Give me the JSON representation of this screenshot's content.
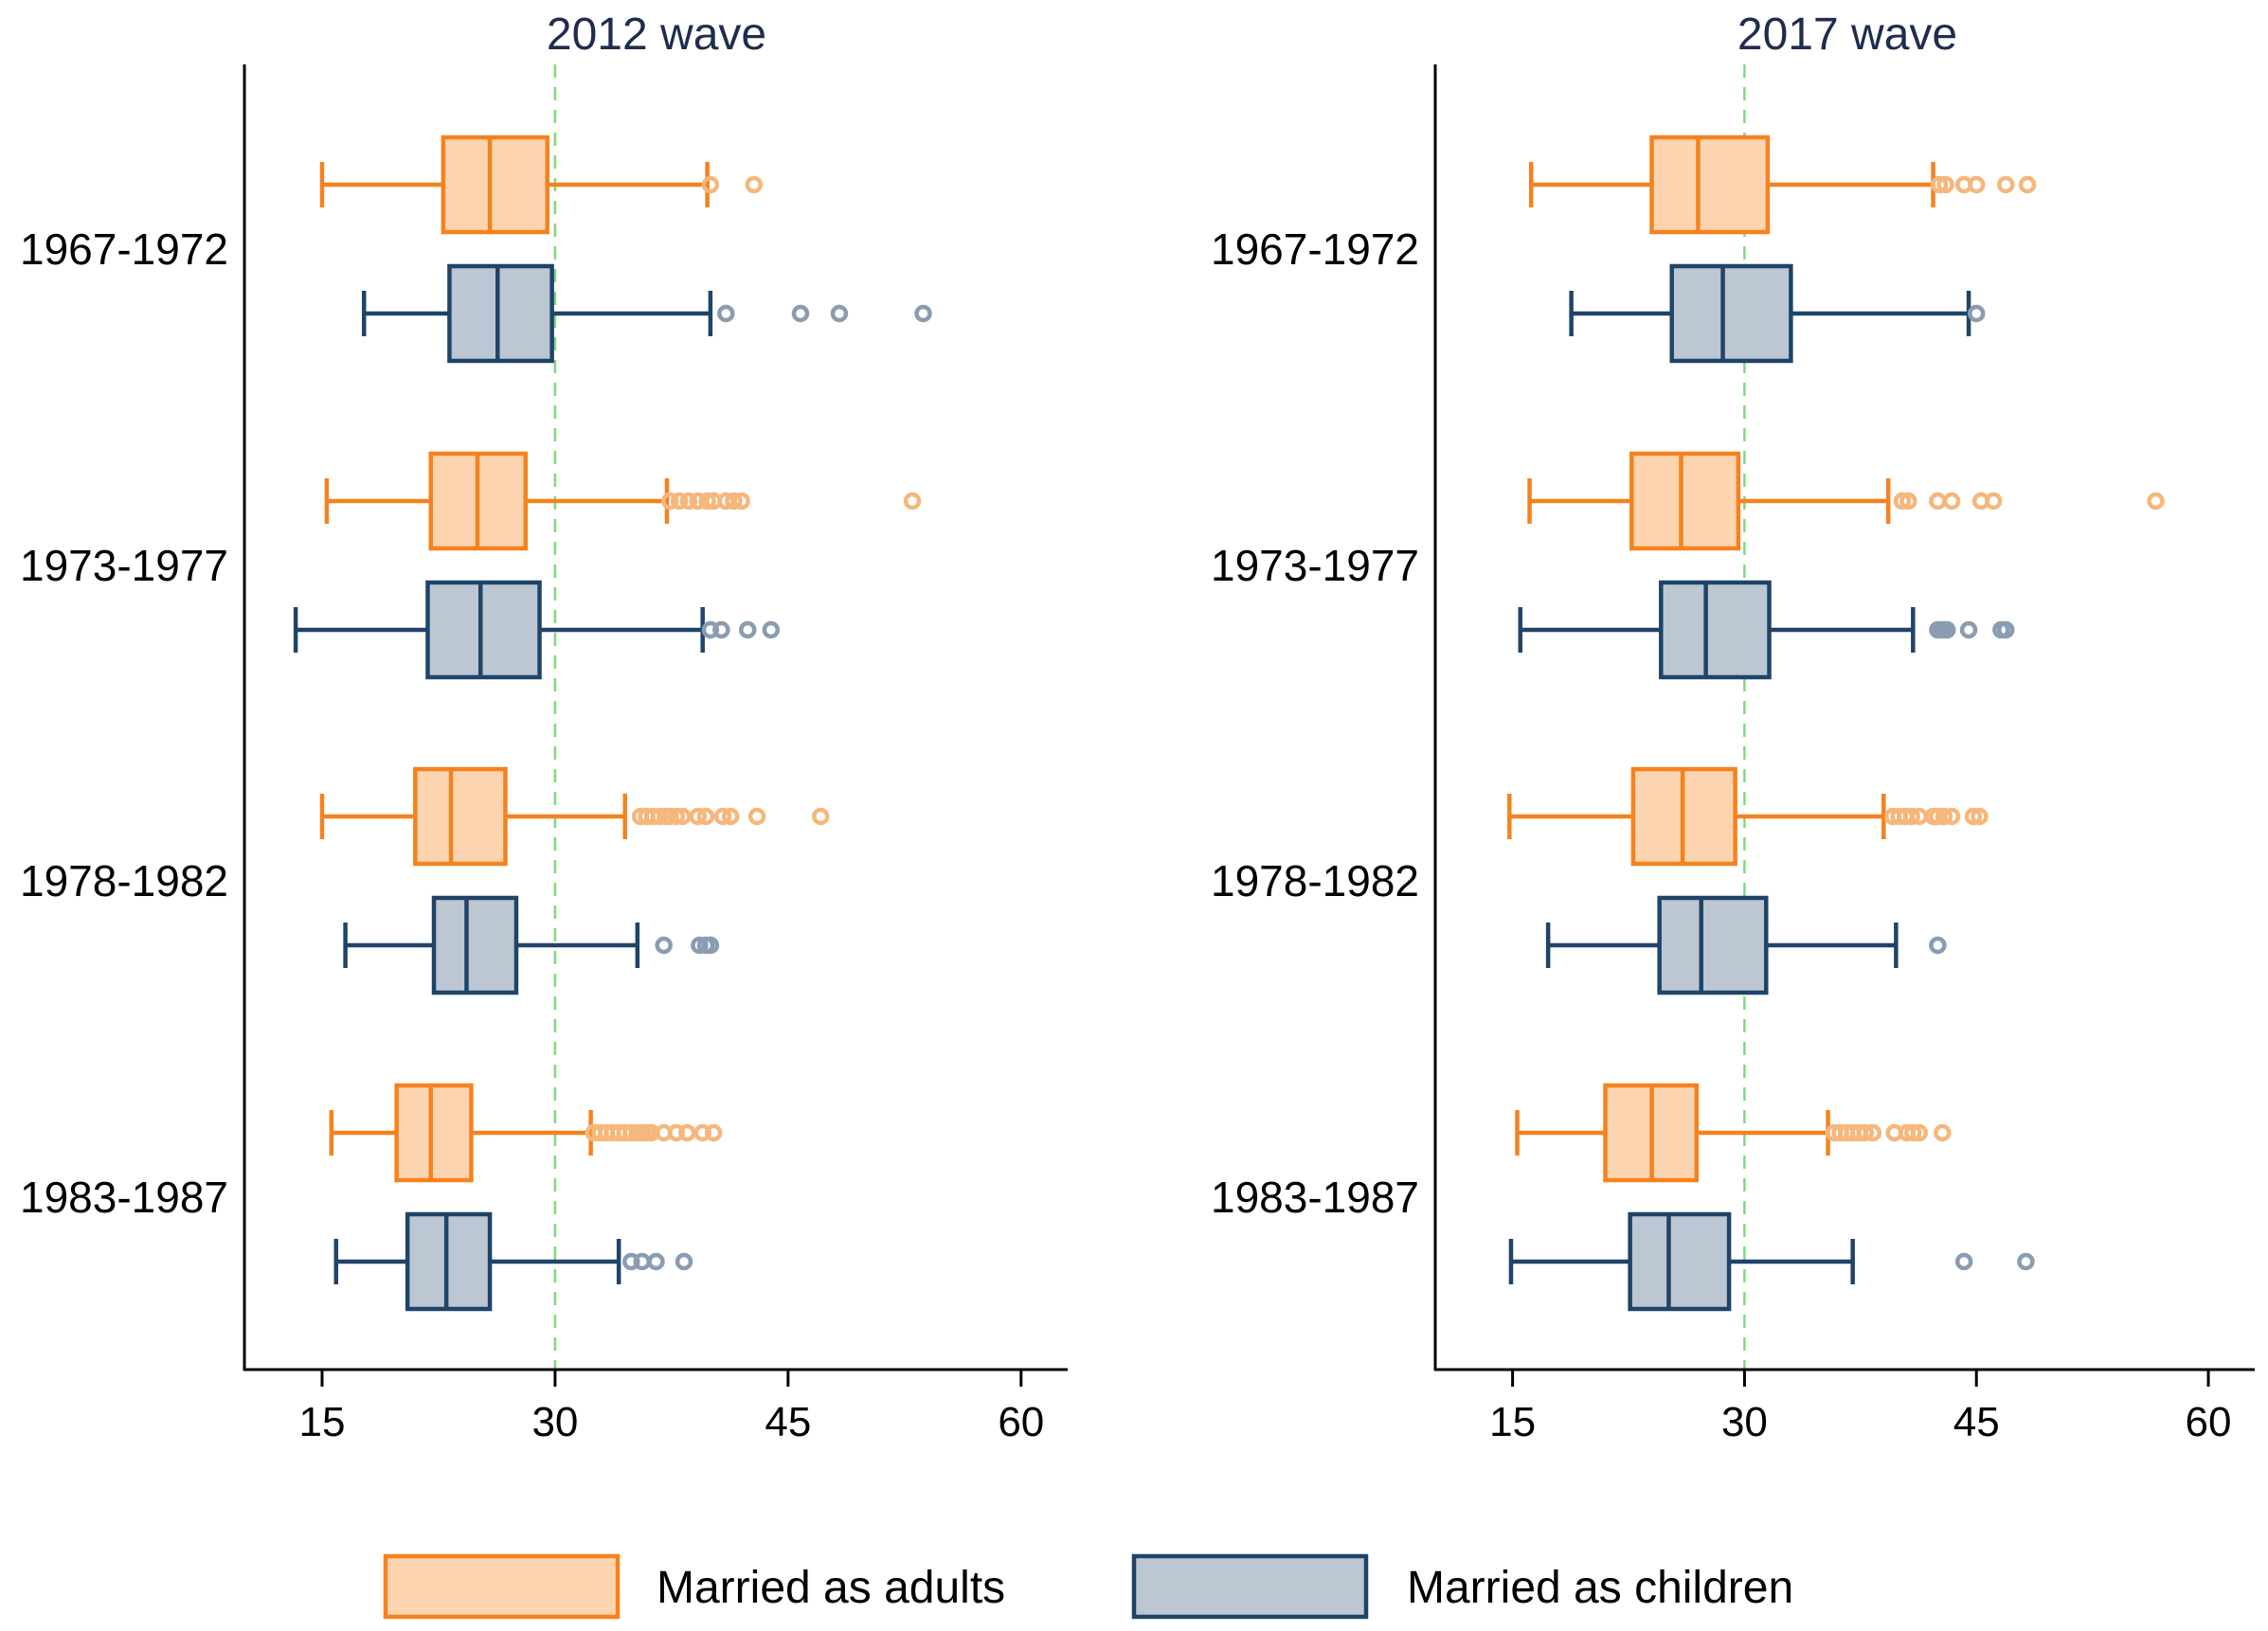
{
  "chart_data": {
    "type": "boxplot",
    "xlim": [
      10,
      63
    ],
    "xticks": [
      15,
      30,
      45,
      60
    ],
    "reference_line": 30,
    "categories": [
      "1967-1972",
      "1973-1977",
      "1978-1982",
      "1983-1987"
    ],
    "series": [
      {
        "name": "Married as adults",
        "fill": "#fcd5b0",
        "stroke": "#f5821f",
        "outlier_color": "#f5b77c"
      },
      {
        "name": "Married as children",
        "fill": "#bcc7d3",
        "stroke": "#1f4468",
        "outlier_color": "#8a9cb0"
      }
    ],
    "panels": [
      {
        "title": "2012 wave",
        "groups": [
          {
            "category": "1967-1972",
            "boxes": [
              {
                "series": "Married as adults",
                "whisker_low": 15,
                "q1": 22.8,
                "median": 25.8,
                "q3": 29.5,
                "whisker_high": 39.8,
                "outliers": [
                  40,
                  42.8
                ]
              },
              {
                "series": "Married as children",
                "whisker_low": 17.7,
                "q1": 23.2,
                "median": 26.3,
                "q3": 29.8,
                "whisker_high": 40,
                "outliers": [
                  41,
                  45.8,
                  48.3,
                  53.7
                ]
              }
            ]
          },
          {
            "category": "1973-1977",
            "boxes": [
              {
                "series": "Married as adults",
                "whisker_low": 15.3,
                "q1": 22,
                "median": 25,
                "q3": 28.1,
                "whisker_high": 37.2,
                "outliers": [
                  37.4,
                  38,
                  38.6,
                  39.2,
                  39.8,
                  40.2,
                  41,
                  41.5,
                  42,
                  53
                ]
              },
              {
                "series": "Married as children",
                "whisker_low": 13.3,
                "q1": 21.8,
                "median": 25.2,
                "q3": 29,
                "whisker_high": 39.5,
                "outliers": [
                  40,
                  40.7,
                  42.4,
                  43.9
                ]
              }
            ]
          },
          {
            "category": "1978-1982",
            "boxes": [
              {
                "series": "Married as adults",
                "whisker_low": 15,
                "q1": 21,
                "median": 23.3,
                "q3": 26.8,
                "whisker_high": 34.5,
                "outliers": [
                  35.5,
                  35.9,
                  36.3,
                  36.7,
                  37.1,
                  37.4,
                  37.8,
                  38.2,
                  39.2,
                  39.7,
                  40.8,
                  41.3,
                  43,
                  47.1
                ]
              },
              {
                "series": "Married as children",
                "whisker_low": 16.5,
                "q1": 22.2,
                "median": 24.3,
                "q3": 27.5,
                "whisker_high": 35.3,
                "outliers": [
                  37,
                  39.3,
                  39.7,
                  40
                ]
              }
            ]
          },
          {
            "category": "1983-1987",
            "boxes": [
              {
                "series": "Married as adults",
                "whisker_low": 15.6,
                "q1": 19.8,
                "median": 22,
                "q3": 24.6,
                "whisker_high": 32.3,
                "outliers": [
                  32.5,
                  32.9,
                  33.3,
                  33.7,
                  34.1,
                  34.5,
                  34.9,
                  35.3,
                  35.6,
                  35.9,
                  36.2,
                  37,
                  37.8,
                  38.5,
                  39.5,
                  40.2
                ]
              },
              {
                "series": "Married as children",
                "whisker_low": 15.9,
                "q1": 20.5,
                "median": 23,
                "q3": 25.8,
                "whisker_high": 34.1,
                "outliers": [
                  34.9,
                  35.6,
                  36.5,
                  38.3
                ]
              }
            ]
          }
        ]
      },
      {
        "title": "2017 wave",
        "groups": [
          {
            "category": "1967-1972",
            "boxes": [
              {
                "series": "Married as adults",
                "whisker_low": 16.2,
                "q1": 24,
                "median": 27,
                "q3": 31.5,
                "whisker_high": 42.2,
                "outliers": [
                  42.6,
                  43,
                  44.2,
                  45,
                  46.9,
                  48.3
                ]
              },
              {
                "series": "Married as children",
                "whisker_low": 18.8,
                "q1": 25.3,
                "median": 28.6,
                "q3": 33,
                "whisker_high": 44.5,
                "outliers": [
                  45
                ]
              }
            ]
          },
          {
            "category": "1973-1977",
            "boxes": [
              {
                "series": "Married as adults",
                "whisker_low": 16.1,
                "q1": 22.7,
                "median": 25.9,
                "q3": 29.6,
                "whisker_high": 39.3,
                "outliers": [
                  40.2,
                  40.6,
                  42.5,
                  43.4,
                  45.3,
                  46.1,
                  56.6
                ]
              },
              {
                "series": "Married as children",
                "whisker_low": 15.5,
                "q1": 24.6,
                "median": 27.5,
                "q3": 31.6,
                "whisker_high": 40.9,
                "outliers": [
                  42.5,
                  42.7,
                  42.9,
                  43.1,
                  44.5,
                  46.6,
                  46.9
                ]
              }
            ]
          },
          {
            "category": "1978-1982",
            "boxes": [
              {
                "series": "Married as adults",
                "whisker_low": 14.8,
                "q1": 22.8,
                "median": 26,
                "q3": 29.4,
                "whisker_high": 39,
                "outliers": [
                  39.6,
                  40,
                  40.4,
                  40.8,
                  41.3,
                  42.2,
                  42.5,
                  42.9,
                  43.4,
                  44.8,
                  45.2
                ]
              },
              {
                "series": "Married as children",
                "whisker_low": 17.3,
                "q1": 24.5,
                "median": 27.2,
                "q3": 31.4,
                "whisker_high": 39.8,
                "outliers": [
                  42.5
                ]
              }
            ]
          },
          {
            "category": "1983-1987",
            "boxes": [
              {
                "series": "Married as adults",
                "whisker_low": 15.3,
                "q1": 21,
                "median": 24,
                "q3": 26.9,
                "whisker_high": 35.4,
                "outliers": [
                  35.8,
                  36.2,
                  36.6,
                  37,
                  37.4,
                  37.8,
                  38.3,
                  39.7,
                  40.5,
                  40.9,
                  41.3,
                  42.8
                ]
              },
              {
                "series": "Married as children",
                "whisker_low": 14.9,
                "q1": 22.6,
                "median": 25.1,
                "q3": 29,
                "whisker_high": 37,
                "outliers": [
                  44.2,
                  48.2
                ]
              }
            ]
          }
        ]
      }
    ]
  }
}
